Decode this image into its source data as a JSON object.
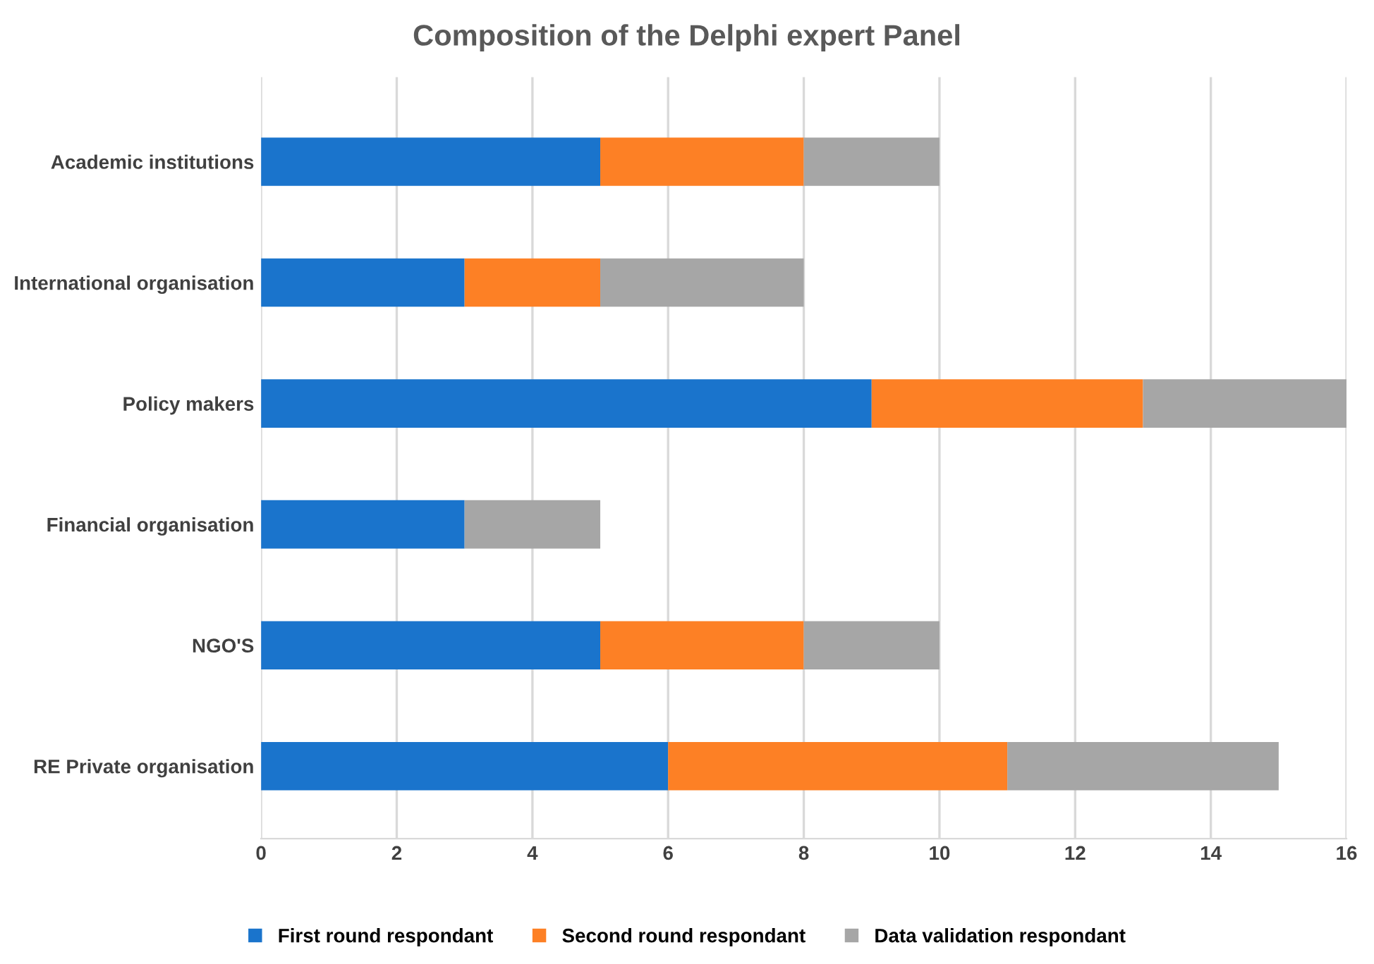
{
  "chart_data": {
    "type": "bar",
    "orientation": "horizontal",
    "stacked": true,
    "title": "Composition of the Delphi expert Panel",
    "categories": [
      "Academic institutions",
      "International organisation",
      "Policy makers",
      "Financial organisation",
      "NGO'S",
      "RE Private organisation"
    ],
    "series": [
      {
        "name": "First round respondant",
        "color": "#1a74cc",
        "values": [
          5,
          3,
          9,
          3,
          5,
          6
        ]
      },
      {
        "name": "Second round respondant",
        "color": "#fd8025",
        "values": [
          3,
          2,
          4,
          0,
          3,
          5
        ]
      },
      {
        "name": "Data validation respondant",
        "color": "#a6a6a6",
        "values": [
          2,
          3,
          3,
          2,
          2,
          4
        ]
      }
    ],
    "xlim": [
      0,
      16
    ],
    "xticks": [
      0,
      2,
      4,
      6,
      8,
      10,
      12,
      14,
      16
    ],
    "grid": "x",
    "legend": "bottom"
  }
}
